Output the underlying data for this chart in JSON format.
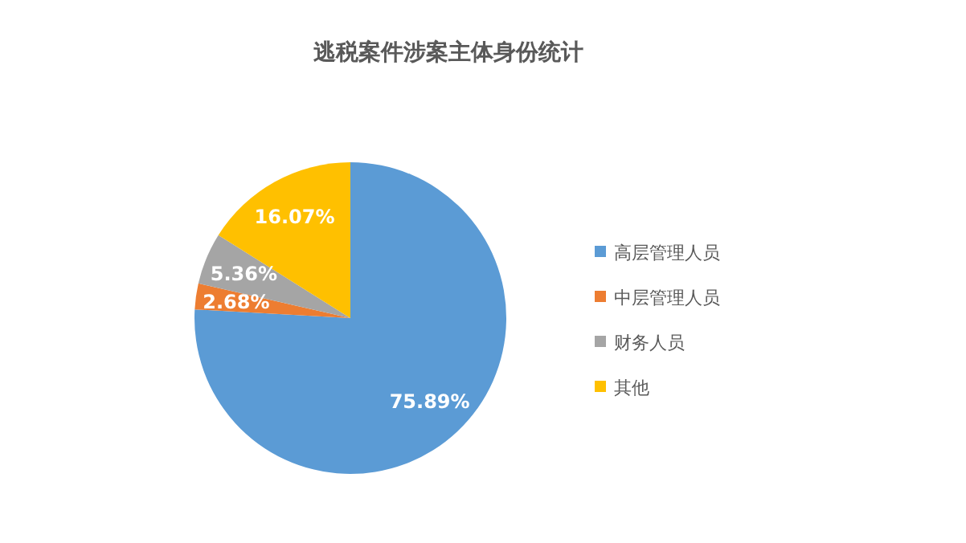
{
  "chart_data": {
    "type": "pie",
    "title": "逃税案件涉案主体身份统计",
    "categories": [
      "高层管理人员",
      "中层管理人员",
      "财务人员",
      "其他"
    ],
    "values": [
      75.89,
      2.68,
      5.36,
      16.07
    ],
    "colors": [
      "#5b9bd5",
      "#ed7d31",
      "#a5a5a5",
      "#ffc000"
    ],
    "value_labels": [
      "75.89%",
      "2.68%",
      "5.36%",
      "16.07%"
    ],
    "legend": "right"
  }
}
